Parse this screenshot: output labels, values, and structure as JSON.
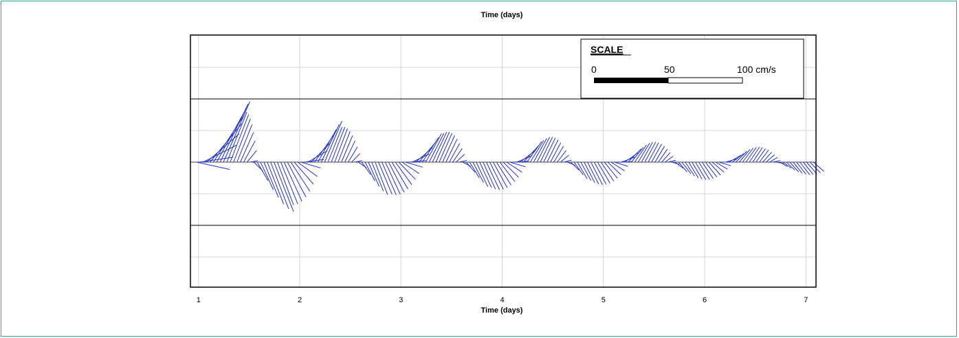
{
  "chart_data": {
    "type": "vector-stick",
    "title_top": "Time (days)",
    "xlabel": "Time (days)",
    "xlim": [
      0.92,
      7.1
    ],
    "x_ticks": [
      "1",
      "2",
      "3",
      "4",
      "5",
      "6",
      "7"
    ],
    "grid": true,
    "legend": {
      "title": "SCALE",
      "labels": [
        "0",
        "50",
        "100 cm/s"
      ],
      "max_cm_s": 100,
      "placement": "top-right"
    },
    "series": [
      {
        "name": "",
        "color": "#1f2fd6",
        "time_start": 0.98,
        "time_end": 7.1,
        "time_step": 0.0333,
        "description_units": "cm/s"
      }
    ],
    "line_color": "#1f2fd6"
  }
}
